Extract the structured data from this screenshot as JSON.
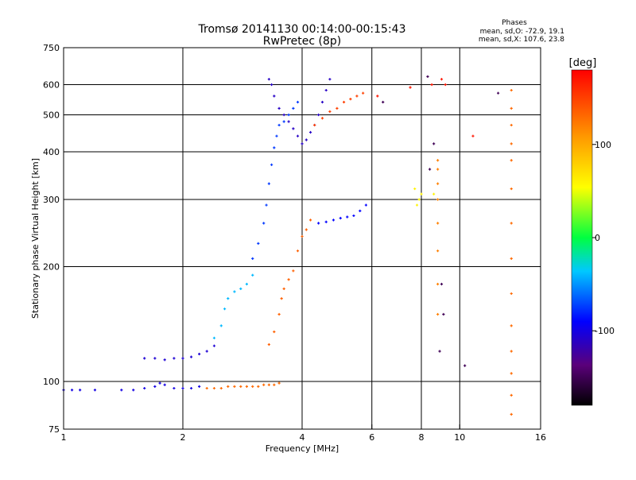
{
  "chart_data": {
    "type": "scatter",
    "title": "Tromsø 20141130 00:14:00-00:15:43",
    "subtitle": "RwPretec (8p)",
    "phase_box": {
      "heading": "Phases",
      "line_o": "mean, sd,O: -72.9, 19.1",
      "line_x": "mean, sd,X: 107.6, 23.8"
    },
    "xlabel": "Frequency [MHz]",
    "ylabel": "Stationary phase Virtual Height [km]",
    "x_scale": "log",
    "y_scale": "log",
    "xlim": [
      1,
      16
    ],
    "ylim": [
      75,
      750
    ],
    "x_ticks": [
      {
        "v": 1,
        "label": "1"
      },
      {
        "v": 2,
        "label": "2"
      },
      {
        "v": 4,
        "label": "4"
      },
      {
        "v": 6,
        "label": "6"
      },
      {
        "v": 8,
        "label": "8"
      },
      {
        "v": 10,
        "label": "10"
      },
      {
        "v": 16,
        "label": "16"
      }
    ],
    "x_grid": [
      2,
      4,
      6,
      8,
      10
    ],
    "y_ticks": [
      {
        "v": 75,
        "label": "75"
      },
      {
        "v": 100,
        "label": "100"
      },
      {
        "v": 200,
        "label": "200"
      },
      {
        "v": 300,
        "label": "300"
      },
      {
        "v": 400,
        "label": "400"
      },
      {
        "v": 500,
        "label": "500"
      },
      {
        "v": 600,
        "label": "600"
      },
      {
        "v": 750,
        "label": "750"
      }
    ],
    "y_grid": [
      100,
      200,
      300,
      400,
      500,
      600
    ],
    "colorbar": {
      "label": "[deg]",
      "range": [
        -180,
        180
      ],
      "ticks": [
        {
          "v": 100,
          "label": "100"
        },
        {
          "v": 0,
          "label": "0"
        },
        {
          "v": -100,
          "label": "-100"
        }
      ]
    },
    "series": [
      {
        "phase": -100,
        "points": [
          [
            1.0,
            95
          ],
          [
            1.05,
            95
          ],
          [
            1.1,
            95
          ],
          [
            1.2,
            95
          ],
          [
            1.4,
            95
          ],
          [
            1.5,
            95
          ],
          [
            1.6,
            96
          ],
          [
            1.7,
            97
          ],
          [
            1.75,
            99
          ],
          [
            1.8,
            98
          ],
          [
            1.9,
            96
          ],
          [
            2.0,
            96
          ],
          [
            2.1,
            96
          ],
          [
            2.2,
            97
          ]
        ]
      },
      {
        "phase": 130,
        "points": [
          [
            2.3,
            96
          ],
          [
            2.4,
            96
          ],
          [
            2.5,
            96
          ],
          [
            2.6,
            97
          ],
          [
            2.7,
            97
          ],
          [
            2.8,
            97
          ],
          [
            2.9,
            97
          ],
          [
            3.0,
            97
          ],
          [
            3.1,
            97
          ],
          [
            3.2,
            98
          ],
          [
            3.3,
            98
          ],
          [
            3.4,
            98
          ],
          [
            3.5,
            99
          ]
        ]
      },
      {
        "phase": -105,
        "points": [
          [
            1.6,
            115
          ],
          [
            1.7,
            115
          ],
          [
            1.8,
            114
          ],
          [
            1.9,
            115
          ],
          [
            2.0,
            115
          ],
          [
            2.1,
            116
          ],
          [
            2.2,
            118
          ],
          [
            2.3,
            120
          ],
          [
            2.4,
            124
          ]
        ]
      },
      {
        "phase": -40,
        "points": [
          [
            2.4,
            130
          ],
          [
            2.5,
            140
          ],
          [
            2.55,
            155
          ],
          [
            2.6,
            165
          ],
          [
            2.7,
            172
          ],
          [
            2.8,
            175
          ],
          [
            2.9,
            180
          ],
          [
            3.0,
            190
          ]
        ]
      },
      {
        "phase": -75,
        "points": [
          [
            3.0,
            210
          ],
          [
            3.1,
            230
          ],
          [
            3.2,
            260
          ],
          [
            3.25,
            290
          ],
          [
            3.3,
            330
          ],
          [
            3.35,
            370
          ],
          [
            3.4,
            410
          ],
          [
            3.45,
            440
          ],
          [
            3.5,
            470
          ],
          [
            3.6,
            480
          ],
          [
            3.7,
            500
          ],
          [
            3.8,
            520
          ],
          [
            3.9,
            540
          ]
        ]
      },
      {
        "phase": -110,
        "points": [
          [
            3.3,
            620
          ],
          [
            3.35,
            600
          ],
          [
            3.4,
            560
          ],
          [
            3.5,
            520
          ],
          [
            3.6,
            500
          ],
          [
            3.7,
            480
          ],
          [
            3.8,
            460
          ],
          [
            3.9,
            440
          ],
          [
            4.0,
            420
          ],
          [
            4.1,
            430
          ],
          [
            4.2,
            450
          ],
          [
            4.3,
            470
          ],
          [
            4.4,
            500
          ],
          [
            4.5,
            540
          ],
          [
            4.6,
            580
          ],
          [
            4.7,
            620
          ]
        ]
      },
      {
        "phase": 135,
        "points": [
          [
            3.3,
            125
          ],
          [
            3.4,
            135
          ],
          [
            3.5,
            150
          ],
          [
            3.55,
            165
          ],
          [
            3.6,
            175
          ],
          [
            3.7,
            185
          ],
          [
            3.8,
            195
          ],
          [
            3.9,
            220
          ],
          [
            4.0,
            240
          ],
          [
            4.1,
            250
          ],
          [
            4.2,
            265
          ]
        ]
      },
      {
        "phase": -90,
        "points": [
          [
            4.4,
            260
          ],
          [
            4.6,
            262
          ],
          [
            4.8,
            265
          ],
          [
            5.0,
            268
          ],
          [
            5.2,
            270
          ],
          [
            5.4,
            272
          ],
          [
            5.6,
            280
          ],
          [
            5.8,
            290
          ]
        ]
      },
      {
        "phase": 150,
        "points": [
          [
            4.3,
            470
          ],
          [
            4.5,
            490
          ],
          [
            4.7,
            510
          ],
          [
            4.9,
            520
          ],
          [
            5.1,
            540
          ],
          [
            5.3,
            550
          ],
          [
            5.5,
            560
          ],
          [
            5.7,
            570
          ]
        ]
      },
      {
        "phase": 130,
        "points": [
          [
            13.5,
            580
          ],
          [
            13.5,
            520
          ],
          [
            13.5,
            470
          ],
          [
            13.5,
            420
          ],
          [
            13.5,
            380
          ],
          [
            13.5,
            320
          ],
          [
            13.5,
            260
          ],
          [
            13.5,
            210
          ],
          [
            13.5,
            170
          ],
          [
            13.5,
            140
          ],
          [
            13.5,
            120
          ],
          [
            13.5,
            105
          ],
          [
            13.5,
            92
          ],
          [
            13.5,
            82
          ]
        ]
      },
      {
        "phase": 120,
        "points": [
          [
            8.8,
            300
          ],
          [
            8.8,
            330
          ],
          [
            8.8,
            360
          ],
          [
            8.8,
            380
          ],
          [
            8.8,
            260
          ],
          [
            8.8,
            220
          ],
          [
            8.8,
            180
          ],
          [
            8.8,
            150
          ]
        ]
      },
      {
        "phase": 60,
        "points": [
          [
            7.8,
            290
          ],
          [
            7.9,
            300
          ],
          [
            8.0,
            310
          ],
          [
            7.7,
            320
          ],
          [
            8.6,
            310
          ]
        ]
      },
      {
        "phase": 170,
        "points": [
          [
            8.5,
            600
          ],
          [
            9.0,
            620
          ],
          [
            7.5,
            590
          ],
          [
            6.2,
            560
          ],
          [
            10.8,
            440
          ],
          [
            9.2,
            600
          ]
        ]
      },
      {
        "phase": -150,
        "points": [
          [
            8.3,
            630
          ],
          [
            12.5,
            570
          ],
          [
            8.6,
            420
          ],
          [
            8.4,
            360
          ],
          [
            9.0,
            180
          ],
          [
            9.1,
            150
          ],
          [
            10.3,
            110
          ],
          [
            6.4,
            540
          ],
          [
            8.9,
            120
          ]
        ]
      }
    ]
  }
}
